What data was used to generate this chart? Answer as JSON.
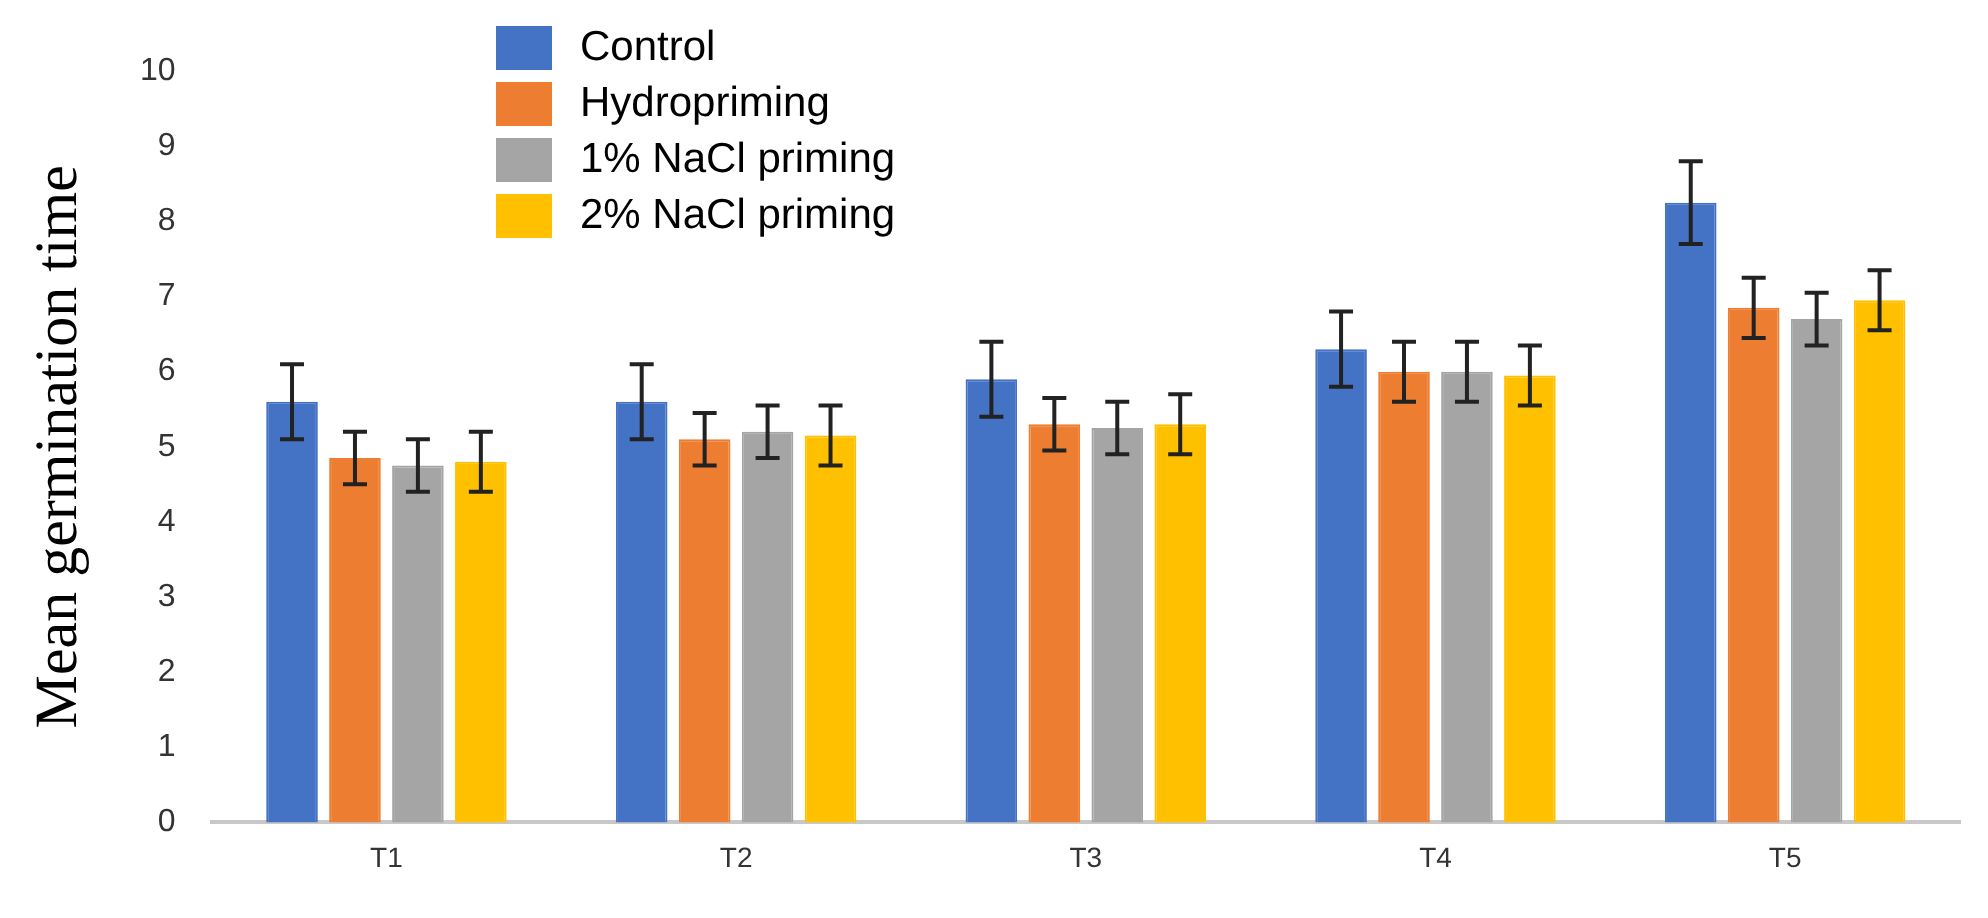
{
  "chart_data": {
    "type": "bar",
    "ylabel": "Mean germination time",
    "categories": [
      "T1",
      "T2",
      "T3",
      "T4",
      "T5"
    ],
    "series": [
      {
        "name": "Control",
        "color": "#4472c4",
        "values": [
          5.6,
          5.6,
          5.9,
          6.3,
          8.25
        ],
        "errors": [
          0.5,
          0.5,
          0.5,
          0.5,
          0.55
        ]
      },
      {
        "name": "Hydropriming",
        "color": "#ed7d31",
        "values": [
          4.85,
          5.1,
          5.3,
          6.0,
          6.85
        ],
        "errors": [
          0.35,
          0.35,
          0.35,
          0.4,
          0.4
        ]
      },
      {
        "name": "1% NaCl priming",
        "color": "#a5a5a5",
        "values": [
          4.75,
          5.2,
          5.25,
          6.0,
          6.7
        ],
        "errors": [
          0.35,
          0.35,
          0.35,
          0.4,
          0.35
        ]
      },
      {
        "name": "2% NaCl priming",
        "color": "#ffc000",
        "values": [
          4.8,
          5.15,
          5.3,
          5.95,
          6.95
        ],
        "errors": [
          0.4,
          0.4,
          0.4,
          0.4,
          0.4
        ]
      }
    ],
    "ylim": [
      0,
      10
    ],
    "yticks": [
      0,
      1,
      2,
      3,
      4,
      5,
      6,
      7,
      8,
      9,
      10
    ],
    "grid": false,
    "legend": "top left"
  }
}
